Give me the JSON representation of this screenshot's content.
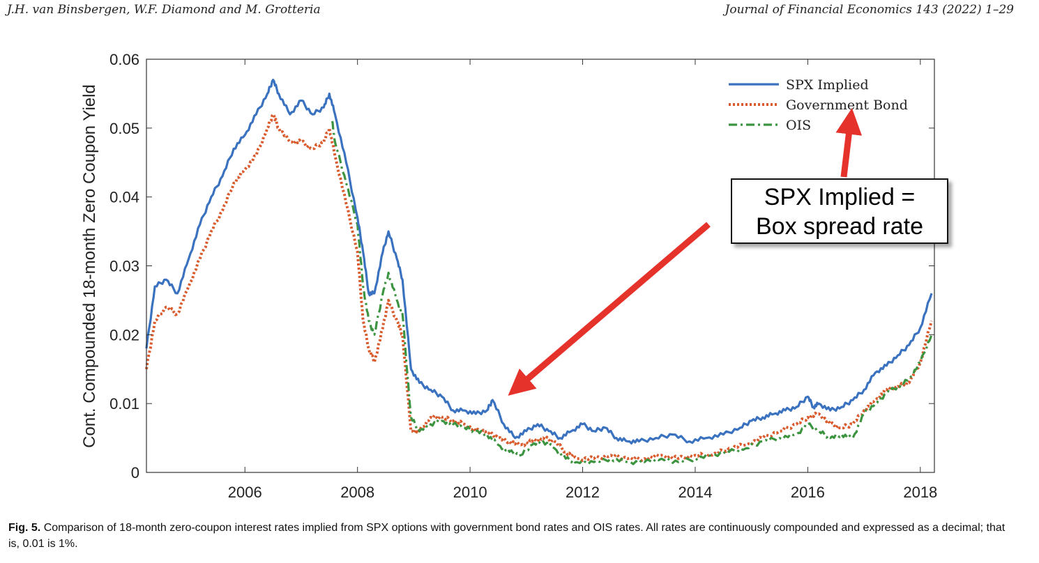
{
  "header": {
    "authors": "J.H. van Binsbergen, W.F. Diamond and M. Grotteria",
    "journal": "Journal of Financial Economics 143 (2022) 1–29"
  },
  "callout": {
    "line1": "SPX Implied =",
    "line2": "Box spread rate"
  },
  "caption": {
    "label": "Fig. 5.",
    "text": "Comparison of 18-month zero-coupon interest rates implied from SPX options with government bond rates and OIS rates. All rates are continuously compounded and expressed as a decimal; that is, 0.01 is 1%."
  },
  "colors": {
    "spx": "#3a72c0",
    "gov": "#d95a2b",
    "ois": "#3c9440",
    "arrow": "#e5322a"
  },
  "chart_data": {
    "type": "line",
    "title": "",
    "xlabel": "",
    "ylabel": "Cont. Compounded 18-month Zero Coupon Yield",
    "xlim": [
      2004.25,
      2018.25
    ],
    "ylim": [
      0,
      0.06
    ],
    "xticks": [
      "2006",
      "2008",
      "2010",
      "2012",
      "2014",
      "2016",
      "2018"
    ],
    "yticks": [
      "0",
      "0.01",
      "0.02",
      "0.03",
      "0.04",
      "0.05",
      "0.06"
    ],
    "legend": "top-right",
    "grid": false,
    "series": [
      {
        "name": "SPX Implied",
        "style": "solid",
        "x": [
          2004.25,
          2004.4,
          2004.6,
          2004.8,
          2005.0,
          2005.2,
          2005.4,
          2005.6,
          2005.8,
          2006.0,
          2006.2,
          2006.4,
          2006.5,
          2006.6,
          2006.8,
          2007.0,
          2007.2,
          2007.4,
          2007.5,
          2007.6,
          2007.8,
          2008.0,
          2008.1,
          2008.2,
          2008.3,
          2008.45,
          2008.55,
          2008.7,
          2008.8,
          2008.95,
          2009.1,
          2009.3,
          2009.5,
          2009.7,
          2009.9,
          2010.1,
          2010.3,
          2010.4,
          2010.6,
          2010.8,
          2011.0,
          2011.2,
          2011.4,
          2011.6,
          2011.8,
          2012.0,
          2012.2,
          2012.4,
          2012.6,
          2012.8,
          2013.0,
          2013.3,
          2013.6,
          2013.9,
          2014.2,
          2014.5,
          2014.8,
          2015.0,
          2015.2,
          2015.4,
          2015.6,
          2015.8,
          2016.0,
          2016.1,
          2016.2,
          2016.4,
          2016.6,
          2016.8,
          2017.0,
          2017.2,
          2017.4,
          2017.6,
          2017.8,
          2018.0,
          2018.2
        ],
        "y": [
          0.018,
          0.027,
          0.028,
          0.026,
          0.031,
          0.036,
          0.04,
          0.043,
          0.047,
          0.049,
          0.052,
          0.055,
          0.057,
          0.055,
          0.052,
          0.054,
          0.052,
          0.053,
          0.055,
          0.052,
          0.045,
          0.037,
          0.032,
          0.026,
          0.026,
          0.032,
          0.035,
          0.031,
          0.028,
          0.015,
          0.013,
          0.012,
          0.011,
          0.009,
          0.009,
          0.0085,
          0.009,
          0.0105,
          0.007,
          0.005,
          0.006,
          0.007,
          0.006,
          0.005,
          0.006,
          0.007,
          0.006,
          0.0065,
          0.005,
          0.0045,
          0.0045,
          0.005,
          0.0055,
          0.0045,
          0.005,
          0.0055,
          0.0065,
          0.0075,
          0.008,
          0.0085,
          0.009,
          0.0095,
          0.011,
          0.0095,
          0.01,
          0.009,
          0.0095,
          0.0105,
          0.012,
          0.0145,
          0.0155,
          0.017,
          0.0185,
          0.021,
          0.026
        ]
      },
      {
        "name": "Government Bond",
        "style": "dotted",
        "x": [
          2004.25,
          2004.4,
          2004.6,
          2004.8,
          2005.0,
          2005.2,
          2005.4,
          2005.6,
          2005.8,
          2006.0,
          2006.2,
          2006.4,
          2006.5,
          2006.6,
          2006.8,
          2007.0,
          2007.2,
          2007.4,
          2007.5,
          2007.6,
          2007.8,
          2008.0,
          2008.1,
          2008.2,
          2008.3,
          2008.45,
          2008.55,
          2008.7,
          2008.8,
          2008.95,
          2009.1,
          2009.3,
          2009.5,
          2009.7,
          2009.9,
          2010.1,
          2010.3,
          2010.5,
          2010.7,
          2010.9,
          2011.1,
          2011.3,
          2011.5,
          2011.7,
          2011.9,
          2012.2,
          2012.5,
          2012.8,
          2013.1,
          2013.4,
          2013.7,
          2014.0,
          2014.3,
          2014.6,
          2014.9,
          2015.2,
          2015.5,
          2015.8,
          2016.0,
          2016.2,
          2016.4,
          2016.6,
          2016.8,
          2017.0,
          2017.2,
          2017.4,
          2017.6,
          2017.8,
          2018.0,
          2018.2
        ],
        "y": [
          0.015,
          0.022,
          0.024,
          0.023,
          0.027,
          0.031,
          0.035,
          0.038,
          0.042,
          0.044,
          0.046,
          0.05,
          0.052,
          0.05,
          0.048,
          0.048,
          0.047,
          0.048,
          0.05,
          0.046,
          0.039,
          0.032,
          0.022,
          0.018,
          0.016,
          0.021,
          0.025,
          0.022,
          0.02,
          0.006,
          0.006,
          0.008,
          0.008,
          0.0075,
          0.007,
          0.006,
          0.006,
          0.005,
          0.0045,
          0.004,
          0.0045,
          0.005,
          0.0045,
          0.003,
          0.002,
          0.002,
          0.0025,
          0.002,
          0.002,
          0.0025,
          0.002,
          0.0025,
          0.0025,
          0.0035,
          0.004,
          0.005,
          0.006,
          0.007,
          0.008,
          0.0085,
          0.007,
          0.0065,
          0.007,
          0.009,
          0.0105,
          0.012,
          0.0125,
          0.013,
          0.016,
          0.022
        ]
      },
      {
        "name": "OIS",
        "style": "dashdot",
        "x": [
          2007.55,
          2007.6,
          2007.8,
          2008.0,
          2008.1,
          2008.2,
          2008.3,
          2008.45,
          2008.55,
          2008.7,
          2008.8,
          2008.95,
          2009.1,
          2009.3,
          2009.5,
          2009.7,
          2009.9,
          2010.1,
          2010.3,
          2010.5,
          2010.7,
          2010.9,
          2011.1,
          2011.3,
          2011.5,
          2011.7,
          2011.9,
          2012.2,
          2012.5,
          2012.8,
          2013.1,
          2013.4,
          2013.7,
          2014.0,
          2014.3,
          2014.6,
          2014.9,
          2015.2,
          2015.5,
          2015.8,
          2016.0,
          2016.2,
          2016.4,
          2016.6,
          2016.8,
          2017.0,
          2017.2,
          2017.4,
          2017.6,
          2017.8,
          2018.0,
          2018.2
        ],
        "y": [
          0.051,
          0.048,
          0.042,
          0.036,
          0.027,
          0.022,
          0.02,
          0.026,
          0.029,
          0.025,
          0.023,
          0.008,
          0.006,
          0.007,
          0.0075,
          0.007,
          0.0065,
          0.006,
          0.0055,
          0.004,
          0.003,
          0.0025,
          0.004,
          0.0045,
          0.0035,
          0.002,
          0.0015,
          0.0015,
          0.002,
          0.0015,
          0.0015,
          0.002,
          0.0015,
          0.002,
          0.0025,
          0.003,
          0.0035,
          0.0045,
          0.005,
          0.0055,
          0.007,
          0.006,
          0.005,
          0.0055,
          0.005,
          0.0085,
          0.01,
          0.0115,
          0.0125,
          0.0135,
          0.016,
          0.02
        ]
      }
    ]
  }
}
